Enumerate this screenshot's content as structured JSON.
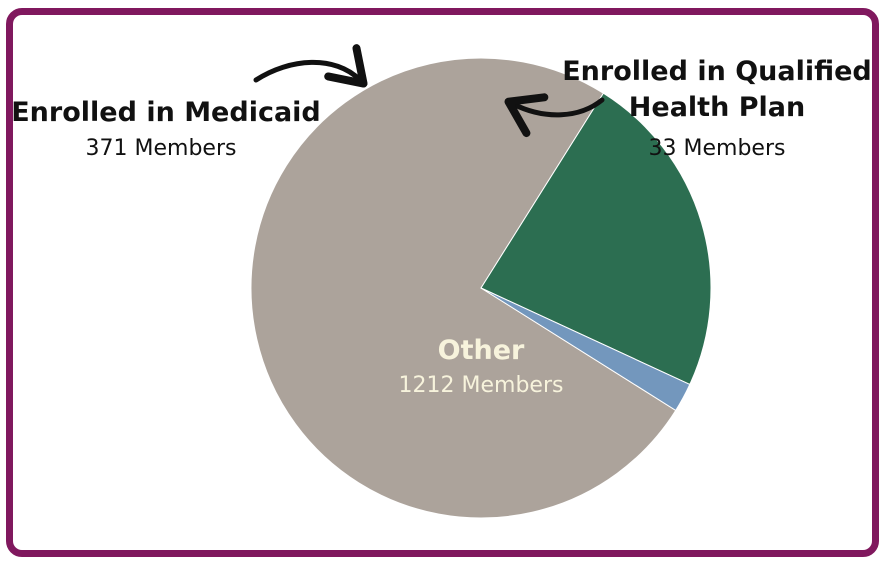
{
  "chart_data": {
    "type": "pie",
    "title": "",
    "slices": [
      {
        "label": "Other",
        "value": 1212,
        "value_label": "1212 Members",
        "color": "#aca39b",
        "label_color": "#f7f3dc"
      },
      {
        "label": "Enrolled in Medicaid",
        "value": 371,
        "value_label": "371 Members",
        "color": "#2c6e51",
        "label_color": "#111111"
      },
      {
        "label": "Enrolled in Qualified Health Plan",
        "label_lines": [
          "Enrolled in Qualified",
          "Health Plan"
        ],
        "value": 33,
        "value_label": "33 Members",
        "color": "#7397bd",
        "label_color": "#111111"
      }
    ],
    "exploded_slice": "Other",
    "legend": "none",
    "annotations": "curved arrows pointing from side labels to the small slices"
  },
  "colors": {
    "frame_border": "#80185e",
    "background": "#ffffff",
    "arrow": "#111111"
  }
}
